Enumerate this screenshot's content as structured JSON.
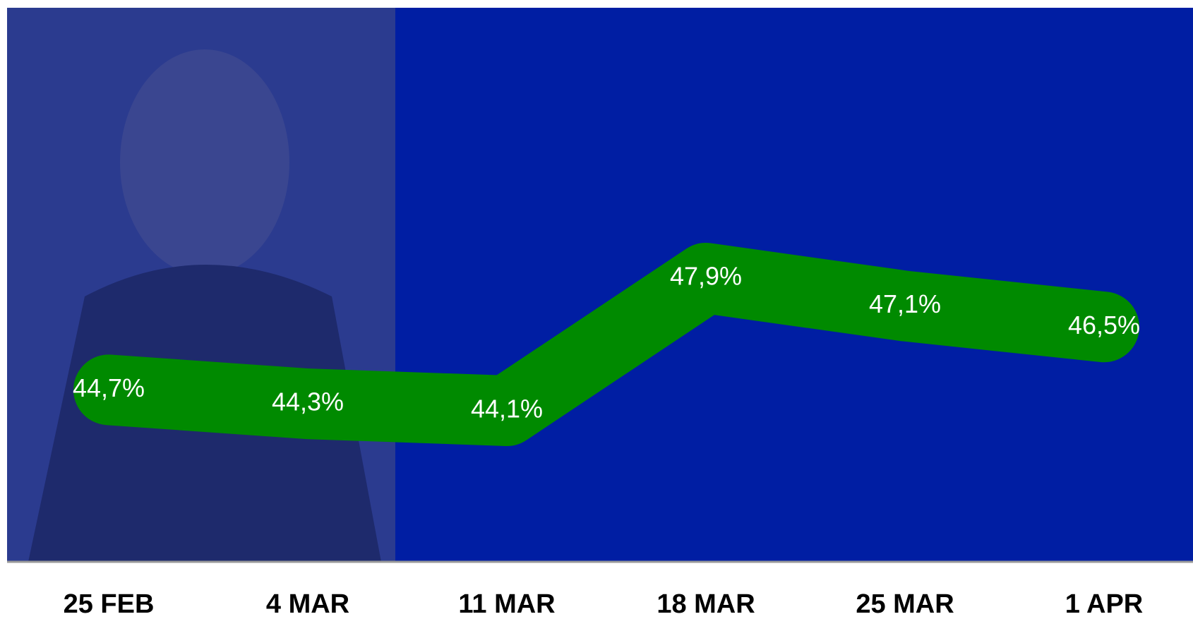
{
  "chart_data": {
    "type": "line",
    "categories": [
      "25 FEB",
      "4 MAR",
      "11 MAR",
      "18 MAR",
      "25 MAR",
      "1 APR"
    ],
    "values": [
      44.7,
      44.3,
      44.1,
      47.9,
      47.1,
      46.5
    ],
    "value_labels": [
      "44,7%",
      "44,3%",
      "44,1%",
      "47,9%",
      "47,1%",
      "46,5%"
    ],
    "color": "#008a00"
  }
}
